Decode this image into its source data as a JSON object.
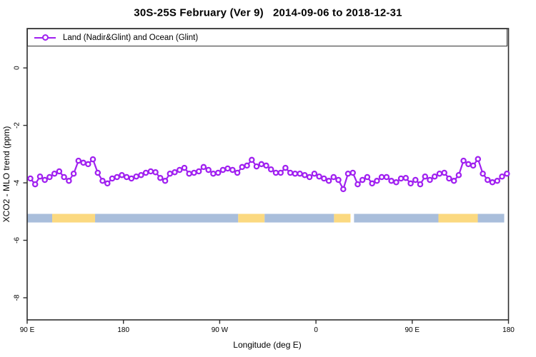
{
  "title": "30S-25S February (Ver 9)   2014-09-06 to 2018-12-31",
  "legend": {
    "label": "Land (Nadir&Glint) and Ocean (Glint)"
  },
  "colors": {
    "series": "#A020F0",
    "marker_fill": "#ffffff",
    "land": "#FBD980",
    "ocean": "#A9BEDB",
    "axis": "#2e2e2e"
  },
  "chart_data": {
    "type": "line",
    "title": "30S-25S February (Ver 9)   2014-09-06 to 2018-12-31",
    "xlabel": "Longitude (deg E)",
    "ylabel": "XCO2 - MLO trend (ppm)",
    "xlim": [
      90,
      540
    ],
    "ylim": [
      -8.77,
      1.37
    ],
    "grid": false,
    "legend_position": "top-left-box-full-width",
    "x_ticks": [
      {
        "value": 90,
        "label": "90 E"
      },
      {
        "value": 180,
        "label": "180"
      },
      {
        "value": 270,
        "label": "90 W"
      },
      {
        "value": 360,
        "label": "0"
      },
      {
        "value": 450,
        "label": "90 E"
      },
      {
        "value": 540,
        "label": "180"
      }
    ],
    "y_ticks": [
      {
        "value": 0,
        "label": "0"
      },
      {
        "value": -2,
        "label": "-2"
      },
      {
        "value": -4,
        "label": "-4"
      },
      {
        "value": -6,
        "label": "-6"
      },
      {
        "value": -8,
        "label": "-8"
      }
    ],
    "series": [
      {
        "name": "Land (Nadir&Glint) and Ocean (Glint)",
        "marker": "open-circle",
        "color": "#A020F0",
        "x": [
          93,
          97.5,
          102,
          106.5,
          111,
          115.5,
          120,
          124.5,
          129,
          133.5,
          138,
          142.5,
          147,
          151.5,
          156,
          160.5,
          165,
          169.5,
          174,
          178.5,
          183,
          187.5,
          192,
          196.5,
          201,
          205.5,
          210,
          214.5,
          219,
          223.5,
          228,
          232.5,
          237,
          241.5,
          246,
          250.5,
          255,
          259.5,
          264,
          268.5,
          273,
          277.5,
          282,
          286.5,
          291,
          295.5,
          300,
          304.5,
          309,
          313.5,
          318,
          322.5,
          327,
          331.5,
          336,
          340.5,
          345,
          349.5,
          354,
          358.5,
          363,
          367.5,
          372,
          376.5,
          381,
          385.5,
          390,
          394.5,
          399,
          403.5,
          408,
          412.5,
          417,
          421.5,
          426,
          430.5,
          435,
          439.5,
          444,
          448.5,
          453,
          457.5,
          462,
          466.5,
          471,
          475.5,
          480,
          484.5,
          489,
          493.5,
          498,
          502.5,
          507,
          511.5,
          516,
          520.5,
          525,
          529.5,
          534,
          538.5
        ],
        "y": [
          -3.85,
          -4.05,
          -3.78,
          -3.9,
          -3.8,
          -3.68,
          -3.6,
          -3.8,
          -3.93,
          -3.68,
          -3.23,
          -3.3,
          -3.35,
          -3.18,
          -3.65,
          -3.93,
          -4.02,
          -3.85,
          -3.8,
          -3.73,
          -3.8,
          -3.85,
          -3.78,
          -3.73,
          -3.65,
          -3.6,
          -3.63,
          -3.83,
          -3.93,
          -3.68,
          -3.63,
          -3.55,
          -3.48,
          -3.68,
          -3.65,
          -3.6,
          -3.45,
          -3.55,
          -3.68,
          -3.65,
          -3.55,
          -3.5,
          -3.55,
          -3.65,
          -3.45,
          -3.4,
          -3.2,
          -3.43,
          -3.35,
          -3.4,
          -3.53,
          -3.65,
          -3.65,
          -3.48,
          -3.65,
          -3.68,
          -3.68,
          -3.73,
          -3.8,
          -3.68,
          -3.78,
          -3.85,
          -3.93,
          -3.8,
          -3.9,
          -4.22,
          -3.68,
          -3.65,
          -4.05,
          -3.9,
          -3.8,
          -4.02,
          -3.93,
          -3.8,
          -3.8,
          -3.93,
          -3.98,
          -3.85,
          -3.83,
          -4.02,
          -3.9,
          -4.05,
          -3.78,
          -3.9,
          -3.78,
          -3.68,
          -3.65,
          -3.85,
          -3.93,
          -3.73,
          -3.23,
          -3.35,
          -3.4,
          -3.17,
          -3.68,
          -3.9,
          -3.98,
          -3.93,
          -3.78,
          -3.68
        ]
      }
    ],
    "surface_band": {
      "description": "land (yellow) / ocean (blue) strip along latitude band",
      "ppm_top": -5.08,
      "ppm_bottom": -5.38,
      "segments": [
        {
          "from": 90,
          "to": 113.4,
          "type": "ocean"
        },
        {
          "from": 113.4,
          "to": 153.5,
          "type": "land"
        },
        {
          "from": 153.5,
          "to": 287.3,
          "type": "ocean"
        },
        {
          "from": 287.3,
          "to": 312.0,
          "type": "land"
        },
        {
          "from": 312.0,
          "to": 376.9,
          "type": "ocean"
        },
        {
          "from": 376.9,
          "to": 392.3,
          "type": "land"
        },
        {
          "from": 395.6,
          "to": 474.5,
          "type": "ocean"
        },
        {
          "from": 474.5,
          "to": 511.3,
          "type": "land"
        },
        {
          "from": 511.3,
          "to": 536.0,
          "type": "ocean"
        }
      ]
    }
  }
}
